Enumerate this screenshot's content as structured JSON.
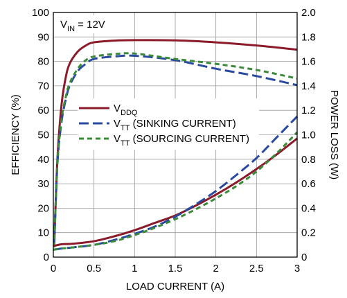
{
  "chart_data": {
    "type": "line",
    "xlabel": "LOAD CURRENT (A)",
    "ylabel_left": "EFFICIENCY (%)",
    "ylabel_right": "POWER LOSS (W)",
    "xlim": [
      0,
      3
    ],
    "ylim_left": [
      0,
      100
    ],
    "ylim_right": [
      0,
      2.0
    ],
    "x_ticks": [
      "0",
      "0.5",
      "1",
      "1.5",
      "2",
      "2.5",
      "3"
    ],
    "y_ticks_left": [
      "0",
      "10",
      "20",
      "30",
      "40",
      "50",
      "60",
      "70",
      "80",
      "90",
      "100"
    ],
    "y_ticks_right": [
      "0",
      "0.2",
      "0.4",
      "0.6",
      "0.8",
      "1.0",
      "1.2",
      "1.4",
      "1.6",
      "1.8",
      "2.0"
    ],
    "grid": true,
    "annotation": {
      "main": "V",
      "sub": "IN",
      "rest": " = 12V"
    },
    "legend": [
      {
        "main": "V",
        "sub": "DDQ",
        "rest": ""
      },
      {
        "main": "V",
        "sub": "TT",
        "rest": " (SINKING CURRENT)"
      },
      {
        "main": "V",
        "sub": "TT",
        "rest": " (SOURCING CURRENT)"
      }
    ],
    "series": [
      {
        "key": "vddq_eff",
        "axis": "left",
        "color": "#8b1a2b",
        "dash": "",
        "x": [
          0.01,
          0.05,
          0.1,
          0.15,
          0.2,
          0.3,
          0.4,
          0.5,
          0.75,
          1.0,
          1.5,
          2.0,
          2.5,
          3.0
        ],
        "y": [
          4,
          40,
          62,
          73,
          79,
          84,
          86.5,
          87.8,
          88.5,
          88.7,
          88.6,
          87.8,
          86.5,
          84.8
        ]
      },
      {
        "key": "vtt_sink_eff",
        "axis": "left",
        "color": "#2a4aa0",
        "dash": "14,6",
        "x": [
          0.01,
          0.05,
          0.1,
          0.15,
          0.2,
          0.3,
          0.4,
          0.5,
          0.75,
          1.0,
          1.5,
          2.0,
          2.5,
          3.0
        ],
        "y": [
          4,
          38,
          55,
          64,
          70,
          76,
          79,
          81,
          82,
          82.3,
          80.5,
          77,
          74,
          70.3
        ]
      },
      {
        "key": "vtt_source_eff",
        "axis": "left",
        "color": "#3a8a3a",
        "dash": "7,5",
        "x": [
          0.01,
          0.05,
          0.1,
          0.15,
          0.2,
          0.3,
          0.4,
          0.5,
          0.75,
          1.0,
          1.5,
          2.0,
          2.5,
          3.0
        ],
        "y": [
          4,
          38,
          56,
          65,
          71,
          77,
          80.5,
          82,
          83,
          83.2,
          81,
          79,
          76.5,
          73
        ]
      },
      {
        "key": "vddq_loss",
        "axis": "right",
        "color": "#8b1a2b",
        "dash": "",
        "x": [
          0,
          0.1,
          0.25,
          0.5,
          0.75,
          1.0,
          1.25,
          1.5,
          1.75,
          2.0,
          2.25,
          2.5,
          2.75,
          3.0
        ],
        "y": [
          0.09,
          0.105,
          0.11,
          0.13,
          0.17,
          0.22,
          0.28,
          0.34,
          0.42,
          0.51,
          0.61,
          0.72,
          0.84,
          0.97
        ]
      },
      {
        "key": "vtt_sink_loss",
        "axis": "right",
        "color": "#2a4aa0",
        "dash": "14,6",
        "x": [
          0,
          0.1,
          0.25,
          0.5,
          0.75,
          1.0,
          1.25,
          1.5,
          1.75,
          2.0,
          2.25,
          2.5,
          2.75,
          3.0
        ],
        "y": [
          0.06,
          0.07,
          0.08,
          0.1,
          0.14,
          0.19,
          0.25,
          0.33,
          0.43,
          0.54,
          0.67,
          0.81,
          0.98,
          1.15
        ]
      },
      {
        "key": "vtt_source_loss",
        "axis": "right",
        "color": "#3a8a3a",
        "dash": "7,5",
        "x": [
          0,
          0.1,
          0.25,
          0.5,
          0.75,
          1.0,
          1.25,
          1.5,
          1.75,
          2.0,
          2.25,
          2.5,
          2.75,
          3.0
        ],
        "y": [
          0.06,
          0.07,
          0.08,
          0.1,
          0.13,
          0.18,
          0.24,
          0.31,
          0.39,
          0.48,
          0.58,
          0.7,
          0.85,
          1.02
        ]
      }
    ]
  }
}
